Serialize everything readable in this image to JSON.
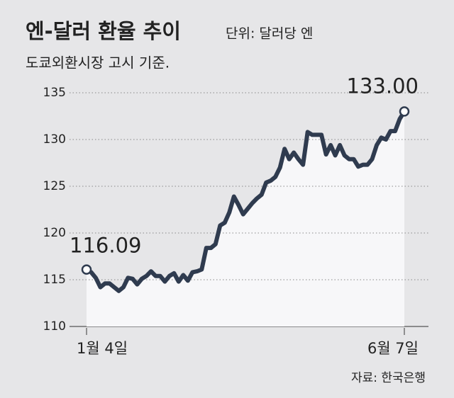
{
  "chart_data": {
    "type": "line",
    "title": "엔-달러 환율 추이",
    "unit": "단위: 달러당 엔",
    "subtitle": "도쿄외환시장 고시 기준.",
    "source": "자료: 한국은행",
    "categories": [
      "1월 4일",
      null,
      null,
      null,
      null,
      null,
      null,
      null,
      null,
      null,
      null,
      null,
      null,
      null,
      null,
      null,
      null,
      null,
      null,
      null,
      null,
      null,
      null,
      null,
      null,
      null,
      null,
      null,
      null,
      null,
      null,
      null,
      null,
      null,
      null,
      null,
      null,
      null,
      null,
      null,
      null,
      null,
      null,
      null,
      null,
      null,
      null,
      null,
      null,
      null,
      null,
      null,
      null,
      null,
      null,
      null,
      null,
      null,
      null,
      null,
      null,
      null,
      null,
      null,
      null,
      null,
      null,
      null,
      null,
      "6월 7일"
    ],
    "values": [
      116.09,
      115.8,
      115.2,
      114.2,
      114.6,
      114.6,
      114.2,
      113.8,
      114.2,
      115.2,
      115.1,
      114.5,
      115.1,
      115.4,
      115.9,
      115.4,
      115.4,
      114.8,
      115.4,
      115.7,
      114.8,
      115.5,
      114.9,
      115.8,
      115.9,
      116.1,
      118.4,
      118.4,
      118.8,
      120.8,
      121.1,
      122.2,
      123.9,
      123.0,
      122.0,
      122.6,
      123.2,
      123.7,
      124.1,
      125.4,
      125.6,
      126.0,
      127.0,
      129.0,
      127.9,
      128.6,
      127.9,
      127.3,
      130.8,
      130.5,
      130.5,
      130.5,
      128.4,
      129.4,
      128.3,
      129.4,
      128.3,
      127.9,
      127.9,
      127.1,
      127.3,
      127.3,
      127.9,
      129.4,
      130.2,
      130.0,
      130.9,
      130.9,
      132.2,
      133.0
    ],
    "value_labels": [
      "116.09",
      null,
      null,
      null,
      null,
      null,
      null,
      null,
      null,
      null,
      null,
      null,
      null,
      null,
      null,
      null,
      null,
      null,
      null,
      null,
      null,
      null,
      null,
      null,
      null,
      null,
      null,
      null,
      null,
      null,
      null,
      null,
      null,
      null,
      null,
      null,
      null,
      null,
      null,
      null,
      null,
      null,
      null,
      null,
      null,
      null,
      null,
      null,
      null,
      null,
      null,
      null,
      null,
      null,
      null,
      null,
      null,
      null,
      null,
      null,
      null,
      null,
      null,
      null,
      null,
      null,
      null,
      null,
      null,
      "133.00"
    ],
    "color": "#2f3b4f",
    "ylim": [
      110,
      135
    ],
    "yticks": [
      110,
      115,
      120,
      125,
      130,
      135
    ],
    "grid": true
  }
}
